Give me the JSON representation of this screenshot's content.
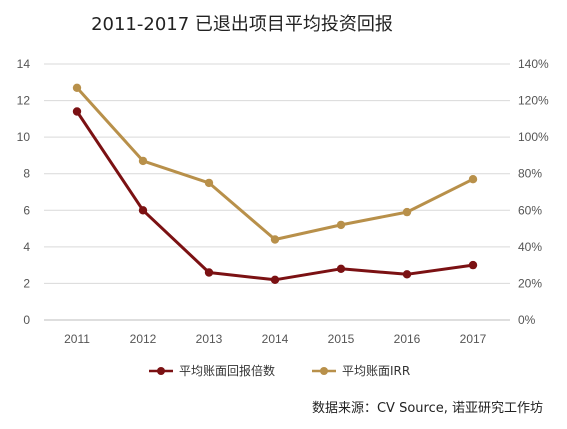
{
  "chart_data": {
    "type": "line",
    "title": "2011-2017 已退出项目平均投资回报",
    "categories": [
      "2011",
      "2012",
      "2013",
      "2014",
      "2015",
      "2016",
      "2017"
    ],
    "series": [
      {
        "name": "平均账面回报倍数",
        "axis": "left",
        "color": "#7b1113",
        "values": [
          11.4,
          6.0,
          2.6,
          2.2,
          2.8,
          2.5,
          3.0
        ]
      },
      {
        "name": "平均账面IRR",
        "axis": "right",
        "color": "#b8904a",
        "values": [
          1.27,
          0.87,
          0.75,
          0.44,
          0.52,
          0.59,
          0.77
        ]
      }
    ],
    "y_left": {
      "ylim": [
        0,
        14
      ],
      "ticks": [
        "0",
        "2",
        "4",
        "6",
        "8",
        "10",
        "12",
        "14"
      ]
    },
    "y_right": {
      "ylim": [
        0,
        1.4
      ],
      "ticks": [
        "0%",
        "20%",
        "40%",
        "60%",
        "80%",
        "100%",
        "120%",
        "140%"
      ]
    },
    "grid": true,
    "legend": "bottom-center"
  },
  "source_text": "数据来源：CV Source, 诺亚研究工作坊"
}
